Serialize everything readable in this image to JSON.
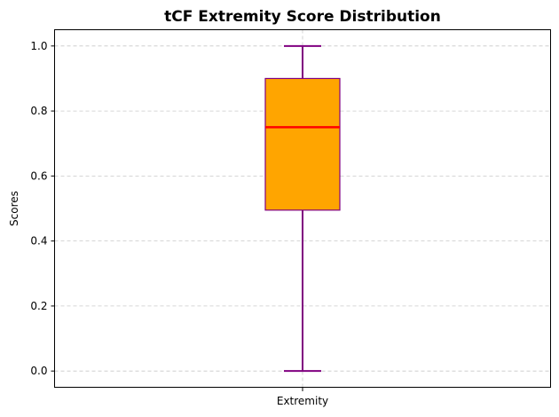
{
  "chart_data": {
    "type": "box",
    "title": "tCF Extremity Score Distribution",
    "xlabel": "",
    "ylabel": "Scores",
    "categories": [
      "Extremity"
    ],
    "boxes": [
      {
        "name": "Extremity",
        "whisker_low": 0.0,
        "q1": 0.495,
        "median": 0.75,
        "q3": 0.9,
        "whisker_high": 1.0
      }
    ],
    "ylim": [
      -0.05,
      1.05
    ],
    "yticks": [
      0.0,
      0.2,
      0.4,
      0.6,
      0.8,
      1.0
    ],
    "ytick_labels": [
      "0.0",
      "0.2",
      "0.4",
      "0.6",
      "0.8",
      "1.0"
    ],
    "grid": true,
    "colors": {
      "box_fill": "#FFA500",
      "box_edge": "#800080",
      "median": "#FF0000",
      "whisker": "#800080",
      "grid": "#c8c8c8"
    }
  }
}
